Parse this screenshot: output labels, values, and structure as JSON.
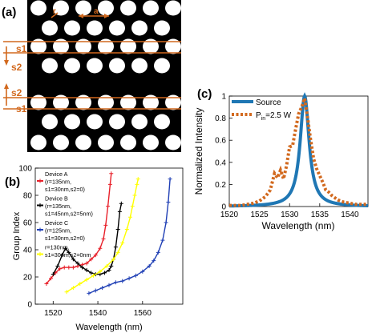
{
  "panel_a": {
    "label": "(a)",
    "annotations": {
      "r": "r",
      "a": "a",
      "s1_top": "s1",
      "s2_top": "s2",
      "s2_bottom": "s2",
      "s1_bottom": "s1"
    },
    "colors": {
      "background": "#000000",
      "holes": "#ffffff",
      "annotation": "#d2691e"
    }
  },
  "chart_data": [
    {
      "panel": "(b)",
      "type": "line",
      "xlabel": "Wavelength (nm)",
      "ylabel": "Group Index",
      "xlim": [
        1512,
        1578
      ],
      "ylim": [
        0,
        100
      ],
      "xticks": [
        1520,
        1540,
        1560
      ],
      "yticks": [
        0,
        20,
        40,
        60,
        80,
        100
      ],
      "legend_position": "top-left",
      "legend": [
        {
          "lines": [
            "Device A",
            "(r=135nm,",
            "s1=30nm,s2=0)"
          ],
          "color": "#e8202a"
        },
        {
          "lines": [
            "Device B",
            "(r=135nm,",
            "s1=45nm,s2=5nm)"
          ],
          "color": "#000000"
        },
        {
          "lines": [
            "Device C",
            "(r=125nm,",
            "s1=30nm,s2=0)"
          ],
          "color": "#1f3fb5"
        },
        {
          "lines": [
            "r=130nm,",
            "s1=30nm,s2=0nm"
          ],
          "color": "#ffff00"
        }
      ],
      "series": [
        {
          "color": "#e8202a",
          "x": [
            1517,
            1519,
            1521,
            1523,
            1525,
            1527,
            1529,
            1531,
            1533,
            1535,
            1537,
            1539,
            1541,
            1542.5,
            1543.5,
            1544.5,
            1545.5,
            1546
          ],
          "y": [
            15,
            19,
            23,
            26,
            27,
            27,
            27,
            28,
            29,
            30,
            33,
            36,
            41,
            48,
            58,
            72,
            88,
            96
          ]
        },
        {
          "color": "#000000",
          "x": [
            1520,
            1522,
            1524,
            1525.5,
            1527,
            1529,
            1531,
            1533,
            1535,
            1537,
            1539,
            1541,
            1543,
            1545,
            1546,
            1547,
            1548,
            1549,
            1549.8,
            1550.5
          ],
          "y": [
            22,
            28,
            36,
            41,
            38,
            33,
            30,
            27,
            25,
            23,
            22,
            22,
            23,
            25,
            28,
            33,
            42,
            55,
            68,
            74
          ]
        },
        {
          "color": "#ffff00",
          "x": [
            1526,
            1529,
            1532,
            1535,
            1538,
            1541,
            1544,
            1547,
            1549,
            1551,
            1553,
            1554.5,
            1555.5,
            1556.5,
            1557.5,
            1558
          ],
          "y": [
            9,
            12,
            15,
            18,
            21,
            24,
            28,
            33,
            38,
            45,
            55,
            64,
            72,
            80,
            88,
            92
          ]
        },
        {
          "color": "#1f3fb5",
          "x": [
            1536,
            1539,
            1542,
            1545,
            1548,
            1551,
            1554,
            1557,
            1560,
            1563,
            1565,
            1567,
            1569,
            1570.5,
            1571.5,
            1572.3
          ],
          "y": [
            8,
            10,
            12,
            14,
            16,
            17,
            19,
            21,
            24,
            28,
            32,
            38,
            47,
            60,
            75,
            92
          ]
        }
      ]
    },
    {
      "panel": "(c)",
      "type": "line",
      "xlabel": "Wavelength (nm)",
      "ylabel": "Normalized Intensity",
      "xlim": [
        1520,
        1543
      ],
      "ylim": [
        0,
        1
      ],
      "xticks": [
        1520,
        1525,
        1530,
        1535,
        1540
      ],
      "yticks": [
        0,
        0.2,
        0.4,
        0.6,
        0.8,
        1
      ],
      "legend_position": "top-left",
      "series": [
        {
          "name": "Source",
          "color": "#1f77b4",
          "style": "solid",
          "center": 1532.5,
          "hwhm": 0.9
        },
        {
          "name_main": "P",
          "name_sub": "in",
          "name_rest": "=2.5 W",
          "color": "#d2691e",
          "style": "dotted",
          "x": [
            1520,
            1521,
            1522,
            1523,
            1524,
            1525,
            1526,
            1526.8,
            1527.5,
            1528,
            1528.5,
            1529,
            1529.5,
            1530,
            1530.5,
            1531,
            1531.5,
            1532,
            1532.5,
            1533,
            1533.5,
            1534,
            1534.5,
            1535,
            1535.5,
            1536,
            1536.5,
            1537,
            1538,
            1539,
            1540,
            1541,
            1542,
            1543
          ],
          "y": [
            0.01,
            0.01,
            0.01,
            0.02,
            0.03,
            0.05,
            0.09,
            0.15,
            0.3,
            0.26,
            0.33,
            0.25,
            0.37,
            0.54,
            0.55,
            0.7,
            0.84,
            0.9,
            0.98,
            0.8,
            0.6,
            0.43,
            0.34,
            0.28,
            0.22,
            0.15,
            0.13,
            0.1,
            0.06,
            0.04,
            0.03,
            0.02,
            0.02,
            0.02
          ]
        }
      ]
    }
  ]
}
